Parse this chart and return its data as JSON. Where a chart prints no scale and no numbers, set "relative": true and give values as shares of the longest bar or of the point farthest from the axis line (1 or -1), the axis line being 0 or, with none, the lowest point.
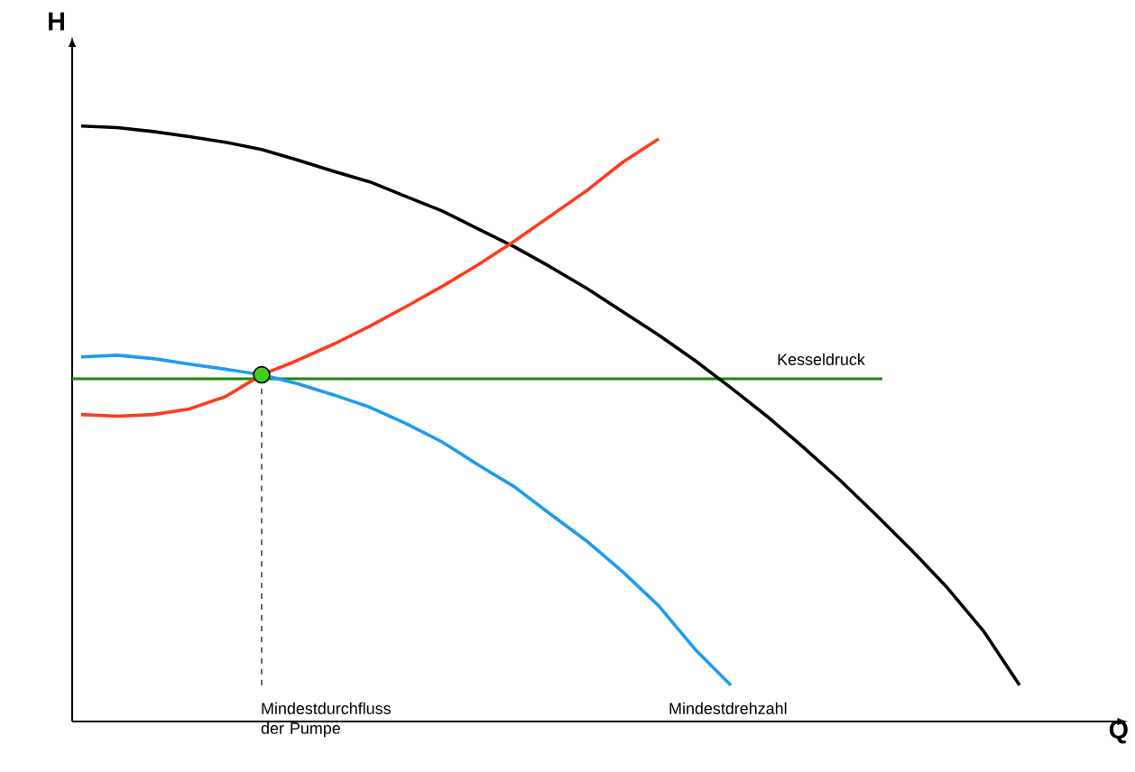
{
  "chart_data": {
    "type": "line",
    "relative": true,
    "xlabel": "Q",
    "ylabel": "H",
    "categories": [
      null,
      null,
      null,
      null,
      null,
      null,
      null,
      null,
      null,
      null,
      null,
      null,
      null,
      null,
      null,
      null,
      null,
      null,
      null,
      null,
      null,
      null,
      null,
      null,
      null,
      null,
      null,
      null,
      null,
      null
    ],
    "series": [
      {
        "color": "#000000",
        "values": [
          1.0,
          0.997,
          0.99,
          0.981,
          0.971,
          0.958,
          0.939,
          0.919,
          0.9,
          0.874,
          0.848,
          0.816,
          0.784,
          0.748,
          0.71,
          0.668,
          0.626,
          0.581,
          0.532,
          0.481,
          0.426,
          0.368,
          0.306,
          0.242,
          0.174,
          0.097,
          0,
          null,
          null,
          null
        ]
      },
      {
        "color": "#ff3b1f",
        "values": [
          0.484,
          0.481,
          0.484,
          0.494,
          0.516,
          0.555,
          0.581,
          0.61,
          0.642,
          0.677,
          0.713,
          0.752,
          0.794,
          0.839,
          0.884,
          0.935,
          0.977,
          null,
          null,
          null,
          null,
          null,
          null,
          null,
          null,
          null,
          null,
          null,
          null,
          null
        ]
      },
      {
        "color": "#1e9bf0",
        "values": [
          0.587,
          0.59,
          0.584,
          0.574,
          0.565,
          0.555,
          0.539,
          0.519,
          0.497,
          0.468,
          0.435,
          0.394,
          0.355,
          0.306,
          0.258,
          0.203,
          0.142,
          0.065,
          0,
          null,
          null,
          null,
          null,
          null,
          null,
          null,
          null,
          null,
          null,
          null
        ]
      },
      {
        "marker": "circle",
        "color": "#44cc22",
        "values": [
          null,
          null,
          null,
          null,
          null,
          0.555,
          null,
          null,
          null,
          null,
          null,
          null,
          null,
          null,
          null,
          null,
          null,
          null,
          null,
          null,
          null,
          null,
          null,
          null,
          null,
          null,
          null,
          null,
          null,
          null
        ]
      }
    ],
    "ref_lines": [
      {
        "axis": "y",
        "value": 0.548,
        "label": "Kesseldruck",
        "color": "#1a8a00"
      }
    ],
    "annotations": [
      "Mindestdurchfluss\nder Pumpe",
      "Mindestdrehzahl"
    ]
  }
}
